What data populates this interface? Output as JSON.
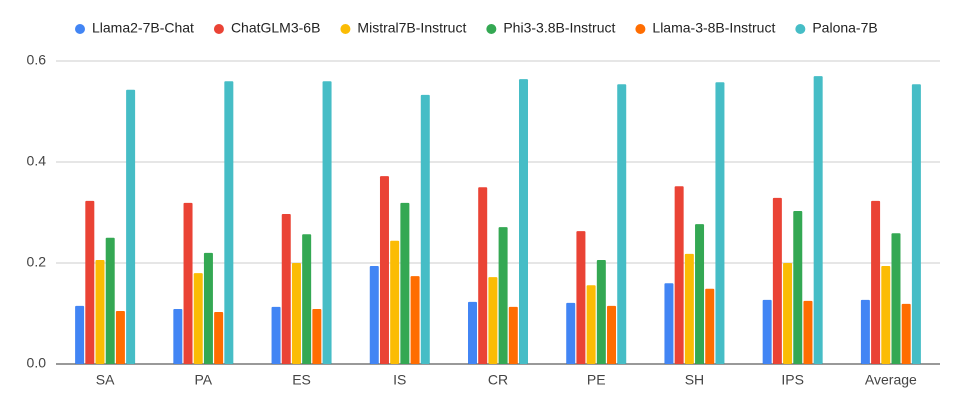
{
  "chart_data": {
    "type": "bar",
    "categories": [
      "SA",
      "PA",
      "ES",
      "IS",
      "CR",
      "PE",
      "SH",
      "IPS",
      "Average"
    ],
    "series": [
      {
        "name": "Llama2-7B-Chat",
        "color": "#4285f4",
        "values": [
          0.115,
          0.109,
          0.113,
          0.194,
          0.123,
          0.121,
          0.16,
          0.127,
          0.127
        ]
      },
      {
        "name": "ChatGLM3-6B",
        "color": "#ea4335",
        "values": [
          0.323,
          0.319,
          0.297,
          0.372,
          0.35,
          0.263,
          0.352,
          0.329,
          0.323
        ]
      },
      {
        "name": "Mistral7B-Instruct",
        "color": "#fbbc04",
        "values": [
          0.206,
          0.18,
          0.2,
          0.244,
          0.172,
          0.156,
          0.218,
          0.2,
          0.194
        ]
      },
      {
        "name": "Phi3-3.8B-Instruct",
        "color": "#34a853",
        "values": [
          0.25,
          0.22,
          0.257,
          0.319,
          0.271,
          0.206,
          0.277,
          0.303,
          0.259
        ]
      },
      {
        "name": "Llama-3-8B-Instruct",
        "color": "#ff6d01",
        "values": [
          0.105,
          0.103,
          0.109,
          0.174,
          0.113,
          0.115,
          0.149,
          0.125,
          0.119
        ]
      },
      {
        "name": "Palona-7B",
        "color": "#46bdc6",
        "values": [
          0.543,
          0.56,
          0.56,
          0.533,
          0.564,
          0.554,
          0.558,
          0.57,
          0.554
        ]
      }
    ],
    "ylim": [
      0,
      0.6
    ],
    "yticks": [
      {
        "value": 0,
        "label": "0.0"
      },
      0.2,
      0.4,
      0.6
    ],
    "grid": true,
    "legend": "top"
  }
}
